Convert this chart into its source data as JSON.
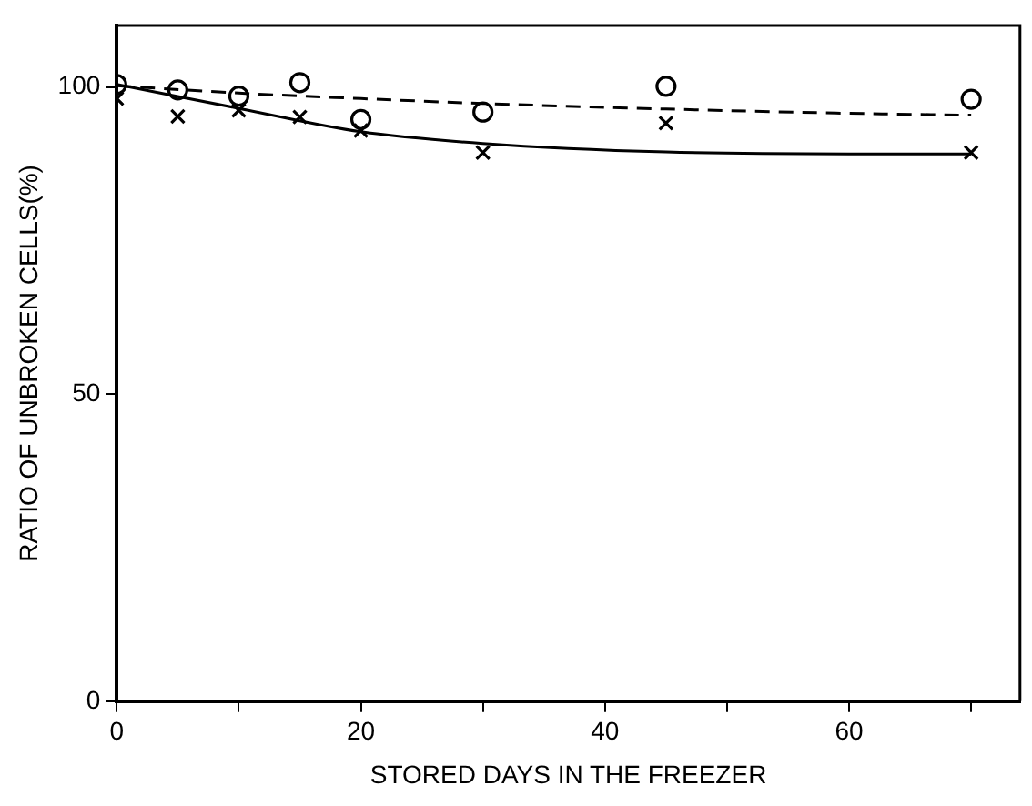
{
  "chart_data": {
    "type": "scatter",
    "xlabel": "STORED DAYS IN THE FREEZER",
    "ylabel": "RATIO OF UNBROKEN CELLS(%)",
    "xlim": [
      0,
      74
    ],
    "ylim": [
      0,
      110
    ],
    "xticks": [
      0,
      {
        "value": 10,
        "label": null
      },
      20,
      {
        "value": 30,
        "label": null
      },
      40,
      {
        "value": 50,
        "label": null
      },
      60,
      {
        "value": 70,
        "label": null
      }
    ],
    "yticks": [
      0,
      50,
      100
    ],
    "grid": false,
    "legend": false,
    "series": [
      {
        "marker": "circle",
        "color": "#000000",
        "x": [
          0,
          5,
          10,
          15,
          20,
          30,
          45,
          70
        ],
        "values": [
          100.4,
          99.5,
          98.5,
          100.7,
          94.7,
          95.9,
          100.1,
          98.0
        ]
      },
      {
        "marker": "cross",
        "color": "#000000",
        "x": [
          0,
          5,
          10,
          15,
          20,
          30,
          45,
          70
        ],
        "values": [
          98.1,
          95.2,
          96.2,
          95.1,
          92.9,
          89.3,
          94.1,
          89.3
        ]
      },
      {
        "type": "line",
        "line_style": "dashed",
        "marker": "none",
        "color": "#000000",
        "x": [
          0,
          10,
          20,
          30,
          45,
          60,
          70
        ],
        "values": [
          100.2,
          99.0,
          98.1,
          97.3,
          96.4,
          95.7,
          95.4
        ]
      },
      {
        "type": "line",
        "line_style": "solid",
        "marker": "none",
        "color": "#000000",
        "x": [
          0,
          10,
          20,
          30,
          45,
          60,
          70
        ],
        "values": [
          100.4,
          96.5,
          92.7,
          90.8,
          89.4,
          89.1,
          89.1
        ]
      }
    ]
  }
}
